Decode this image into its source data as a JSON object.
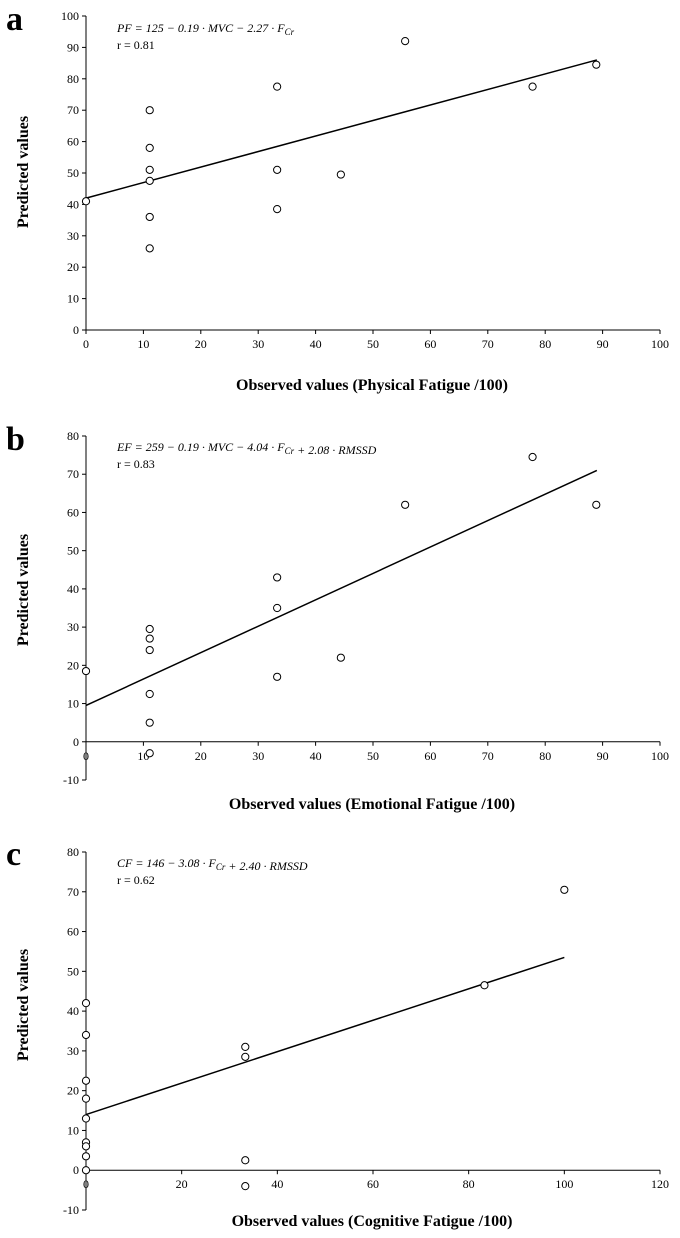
{
  "chart_data": [
    {
      "panel": "a",
      "type": "scatter",
      "equation": "PF = 125 − 0.19 · MVC − 2.27 · F_Cr",
      "r_label": "r = 0.81",
      "xlabel": "Observed values (Physical Fatigue /100)",
      "ylabel": "Predicted values",
      "xlim": [
        0,
        100
      ],
      "ylim": [
        0,
        100
      ],
      "xticks": [
        0,
        10,
        20,
        30,
        40,
        50,
        60,
        70,
        80,
        90,
        100
      ],
      "yticks": [
        0,
        10,
        20,
        30,
        40,
        50,
        60,
        70,
        80,
        90,
        100
      ],
      "points": [
        [
          0,
          41
        ],
        [
          11.1,
          70
        ],
        [
          11.1,
          58
        ],
        [
          11.1,
          51
        ],
        [
          11.1,
          47.5
        ],
        [
          11.1,
          36
        ],
        [
          11.1,
          26
        ],
        [
          33.3,
          77.5
        ],
        [
          33.3,
          51
        ],
        [
          33.3,
          38.5
        ],
        [
          44.4,
          49.5
        ],
        [
          55.6,
          92
        ],
        [
          77.8,
          77.5
        ],
        [
          88.9,
          84.5
        ]
      ],
      "trendline": [
        [
          0,
          42
        ],
        [
          89,
          86
        ]
      ],
      "grid": false
    },
    {
      "panel": "b",
      "type": "scatter",
      "equation": "EF = 259 − 0.19 · MVC − 4.04 · F_Cr + 2.08 · RMSSD",
      "r_label": "r = 0.83",
      "xlabel": "Observed values (Emotional Fatigue /100)",
      "ylabel": "Predicted values",
      "xlim": [
        0,
        100
      ],
      "ylim": [
        -10,
        80
      ],
      "xticks": [
        0,
        10,
        20,
        30,
        40,
        50,
        60,
        70,
        80,
        90,
        100
      ],
      "yticks": [
        -10,
        0,
        10,
        20,
        30,
        40,
        50,
        60,
        70,
        80
      ],
      "points": [
        [
          0,
          18.5
        ],
        [
          11.1,
          29.5
        ],
        [
          11.1,
          27
        ],
        [
          11.1,
          24
        ],
        [
          11.1,
          12.5
        ],
        [
          11.1,
          5
        ],
        [
          11.1,
          -3
        ],
        [
          33.3,
          43
        ],
        [
          33.3,
          35
        ],
        [
          33.3,
          17
        ],
        [
          44.4,
          22
        ],
        [
          55.6,
          62
        ],
        [
          77.8,
          74.5
        ],
        [
          88.9,
          62
        ]
      ],
      "trendline": [
        [
          0,
          9.5
        ],
        [
          89,
          71
        ]
      ],
      "grid": false
    },
    {
      "panel": "c",
      "type": "scatter",
      "equation": "CF = 146 − 3.08 · F_Cr + 2.40 · RMSSD",
      "r_label": "r = 0.62",
      "xlabel": "Observed values (Cognitive Fatigue /100)",
      "ylabel": "Predicted values",
      "xlim": [
        0,
        120
      ],
      "ylim": [
        -10,
        80
      ],
      "xticks": [
        0,
        20,
        40,
        60,
        80,
        100,
        120
      ],
      "yticks": [
        -10,
        0,
        10,
        20,
        30,
        40,
        50,
        60,
        70,
        80
      ],
      "points": [
        [
          0,
          42
        ],
        [
          0,
          34
        ],
        [
          0,
          22.5
        ],
        [
          0,
          18
        ],
        [
          0,
          13
        ],
        [
          0,
          7
        ],
        [
          0,
          6
        ],
        [
          0,
          3.5
        ],
        [
          0,
          0
        ],
        [
          33.3,
          31
        ],
        [
          33.3,
          28.5
        ],
        [
          33.3,
          2.5
        ],
        [
          33.3,
          -4
        ],
        [
          83.3,
          46.5
        ],
        [
          100,
          70.5
        ]
      ],
      "trendline": [
        [
          0,
          14
        ],
        [
          100,
          53.5
        ]
      ],
      "grid": false
    }
  ]
}
